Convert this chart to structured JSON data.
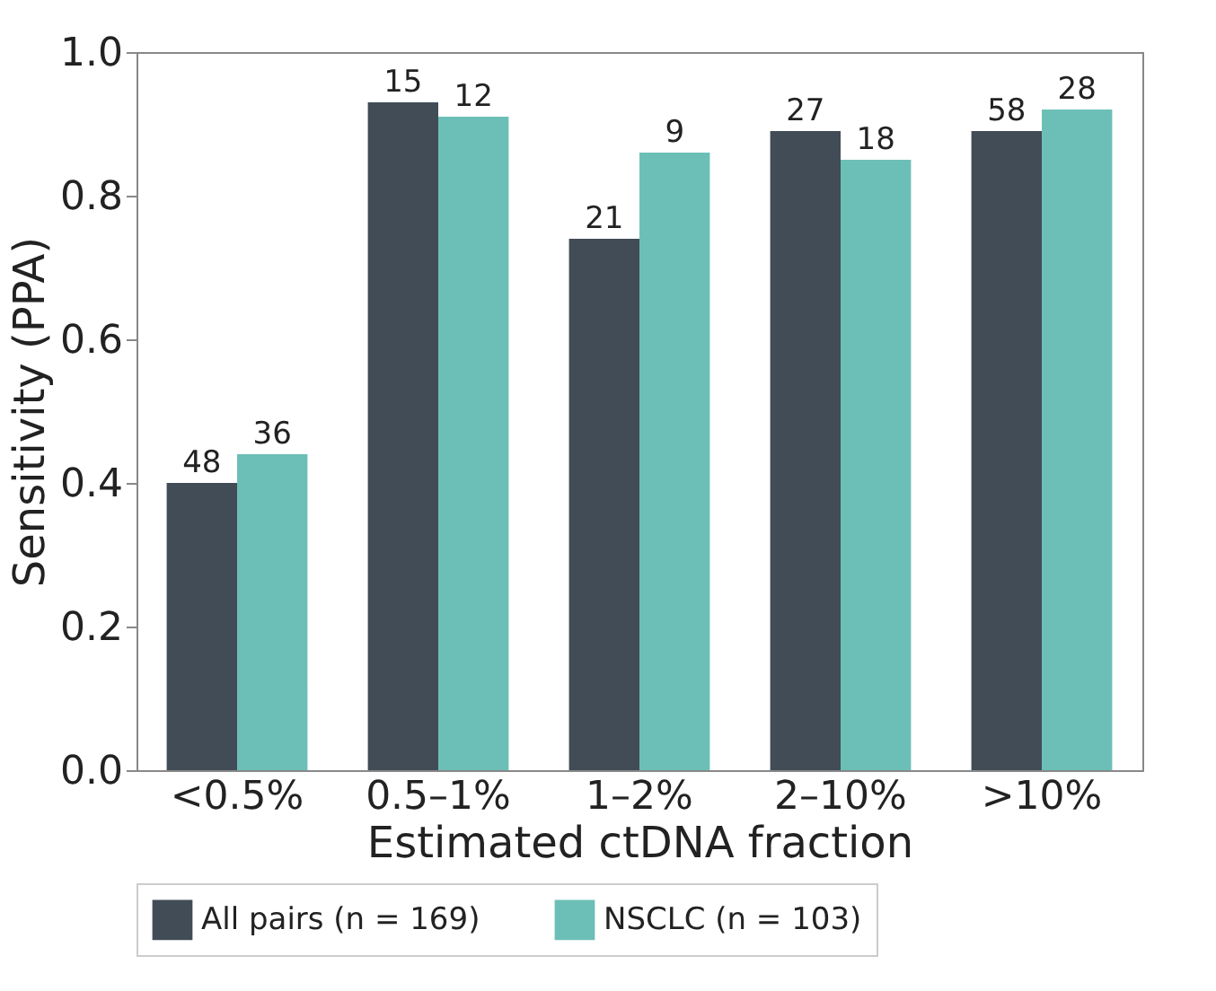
{
  "chart_data": {
    "type": "bar",
    "xlabel": "Estimated ctDNA fraction",
    "ylabel": "Sensitivity (PPA)",
    "categories": [
      "<0.5%",
      "0.5–1%",
      "1–2%",
      "2–10%",
      ">10%"
    ],
    "series": [
      {
        "name": "All pairs (n = 169)",
        "color": "#414c57",
        "values": [
          0.4,
          0.93,
          0.74,
          0.89,
          0.89
        ]
      },
      {
        "name": "NSCLC (n = 103)",
        "color": "#6cbfb6",
        "values": [
          0.44,
          0.91,
          0.86,
          0.85,
          0.92
        ]
      }
    ],
    "annotations": [
      {
        "text": "48",
        "x": "<0.5%",
        "y": 0.4
      },
      {
        "text": "36",
        "x": "<0.5%",
        "y": 0.44
      },
      {
        "text": "15",
        "x": "0.5–1%",
        "y": 0.93
      },
      {
        "text": "12",
        "x": "0.5–1%",
        "y": 0.91
      },
      {
        "text": "21",
        "x": "1–2%",
        "y": 0.74
      },
      {
        "text": "9",
        "x": "1–2%",
        "y": 0.86
      },
      {
        "text": "27",
        "x": "2–10%",
        "y": 0.89
      },
      {
        "text": "18",
        "x": "2–10%",
        "y": 0.85
      },
      {
        "text": "58",
        "x": ">10%",
        "y": 0.89
      },
      {
        "text": "28",
        "x": ">10%",
        "y": 0.92
      }
    ],
    "ylim": [
      0,
      1.0
    ],
    "yticks": [
      {
        "value": 0,
        "label": "0.0"
      },
      {
        "value": 0.2,
        "label": "0.2"
      },
      {
        "value": 0.4,
        "label": "0.4"
      },
      {
        "value": 0.6,
        "label": "0.6"
      },
      {
        "value": 0.8,
        "label": "0.8"
      },
      {
        "value": 1.0,
        "label": "1.0"
      }
    ],
    "grid": false,
    "legend": "bottom"
  }
}
